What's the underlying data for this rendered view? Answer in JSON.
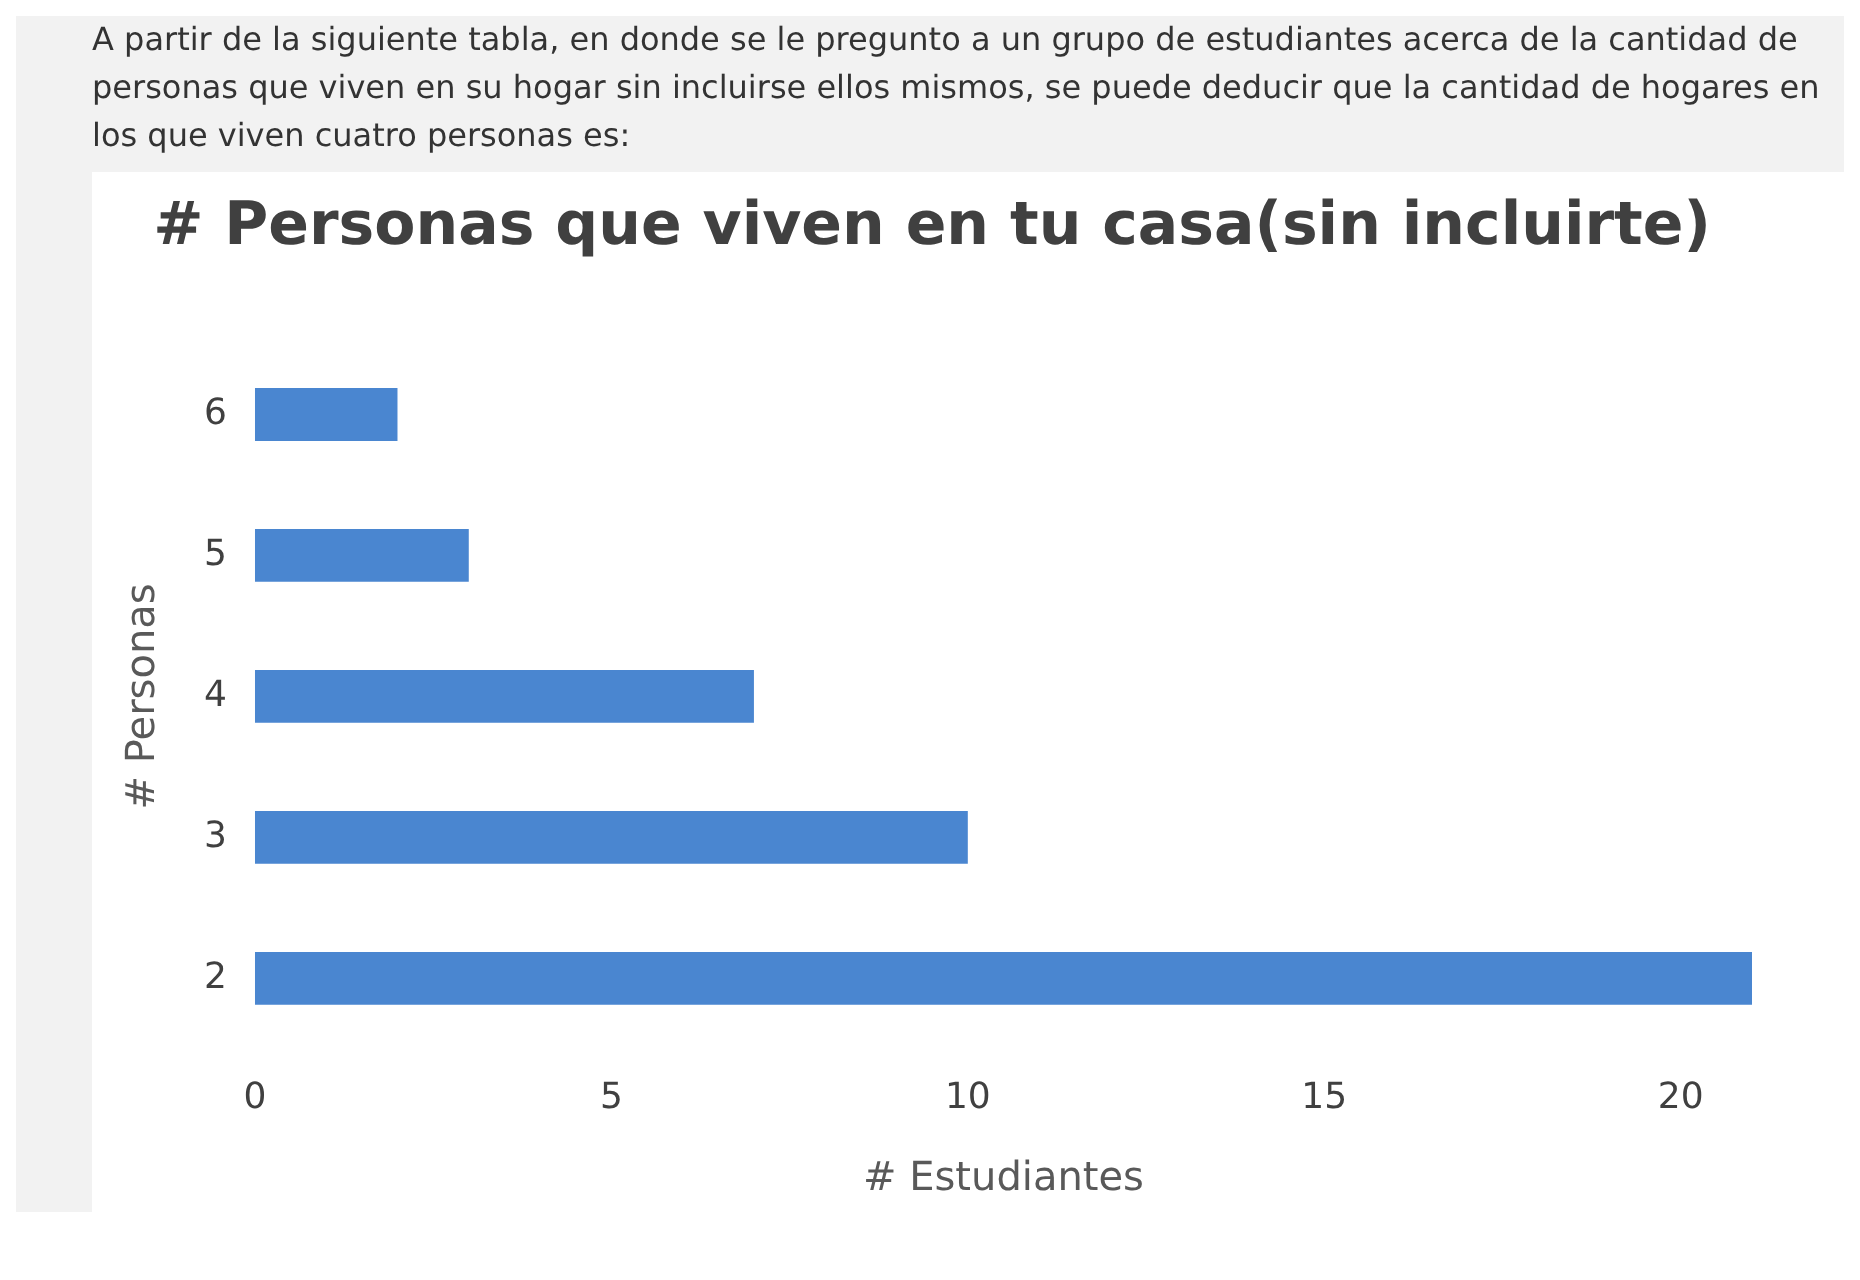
{
  "chart_data": {
    "type": "bar",
    "orientation": "horizontal",
    "title": "# Personas que viven en tu casa(sin incluirte)",
    "xlabel": "# Estudiantes",
    "ylabel": "# Personas",
    "annotations": [
      "A partir de la siguiente tabla, en donde se le pregunto a un grupo de estudiantes acerca de la cantidad de personas que viven en su hogar sin incluirse ellos mismos, se puede deducir que la cantidad de hogares en los que viven cuatro personas es:"
    ],
    "categories": [
      "6",
      "5",
      "4",
      "3",
      "2"
    ],
    "values": [
      2,
      3,
      7,
      10,
      21
    ],
    "color": "#4a86d0",
    "xlim": [
      0,
      21
    ],
    "xticks": [
      0,
      5,
      10,
      15,
      20
    ],
    "grid": false,
    "legend": false
  }
}
